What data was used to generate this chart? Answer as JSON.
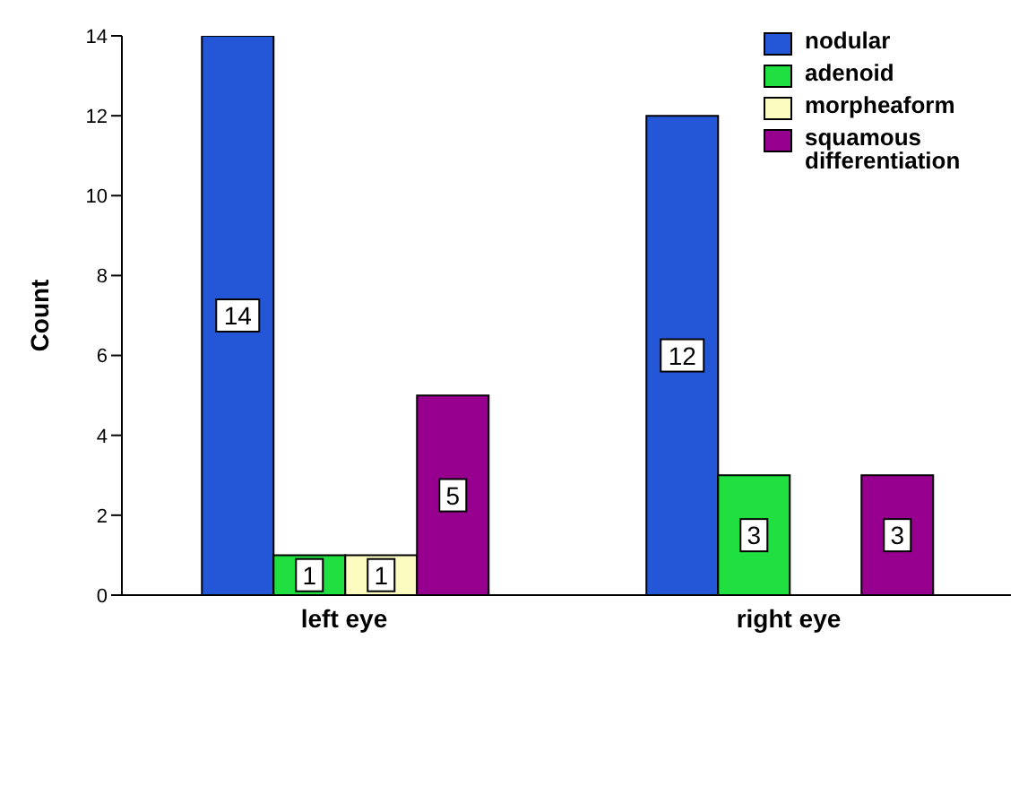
{
  "chart_data": {
    "type": "bar",
    "ylabel": "Count",
    "categories": [
      "left eye",
      "right eye"
    ],
    "series": [
      {
        "name": "nodular",
        "color": "#2457d8",
        "values": [
          14,
          12
        ],
        "value_labels": [
          "14",
          "12"
        ]
      },
      {
        "name": "adenoid",
        "color": "#1fe040",
        "values": [
          1,
          3
        ],
        "value_labels": [
          "1",
          "3"
        ]
      },
      {
        "name": "morpheaform",
        "color": "#fdfcc0",
        "values": [
          1,
          0
        ],
        "value_labels": [
          "1",
          null
        ]
      },
      {
        "name": "squamous differentiation",
        "color": "#97008f",
        "values": [
          5,
          3
        ],
        "value_labels": [
          "5",
          "3"
        ]
      }
    ],
    "ylim": [
      0,
      14
    ],
    "yticks": [
      0,
      2,
      4,
      6,
      8,
      10,
      12,
      14
    ],
    "grid": false,
    "legend": "top right"
  }
}
